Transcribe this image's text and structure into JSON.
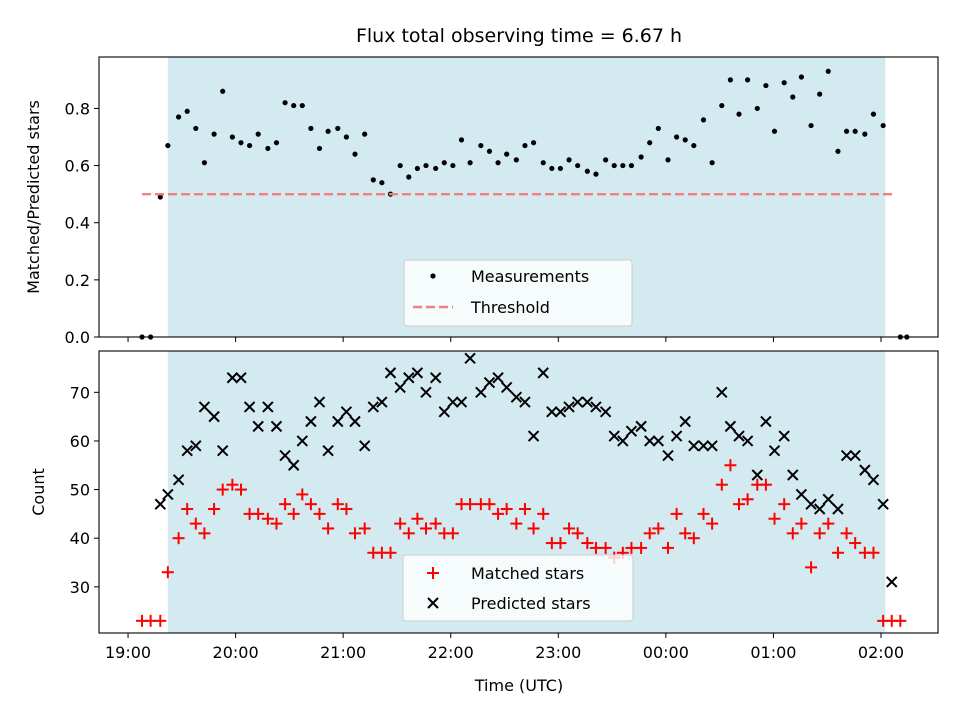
{
  "colors": {
    "shade": "#d3eaf0",
    "threshold": "#f08080",
    "measurement": "#000000",
    "matched": "#ff0000",
    "predicted": "#000000"
  },
  "chart_data": [
    {
      "type": "scatter",
      "title": "Flux total observing time = 6.67 h",
      "xlabel": "",
      "ylabel": "Matched/Predicted stars",
      "x_unit": "hours since 19:00 UTC",
      "xlim": [
        -0.27,
        7.53
      ],
      "ylim": [
        0.0,
        0.98
      ],
      "yticks": [
        0.0,
        0.2,
        0.4,
        0.6,
        0.8
      ],
      "ytick_labels": [
        "0.0",
        "0.2",
        "0.4",
        "0.6",
        "0.8"
      ],
      "shaded_span": [
        0.37,
        7.04
      ],
      "legend_position": "lower-center",
      "series": [
        {
          "name": "Measurements",
          "marker": "dot",
          "points": [
            [
              0.13,
              0.0
            ],
            [
              0.21,
              0.0
            ],
            [
              0.3,
              0.49
            ],
            [
              0.37,
              0.67
            ],
            [
              0.47,
              0.77
            ],
            [
              0.55,
              0.79
            ],
            [
              0.63,
              0.73
            ],
            [
              0.71,
              0.61
            ],
            [
              0.8,
              0.71
            ],
            [
              0.88,
              0.86
            ],
            [
              0.97,
              0.7
            ],
            [
              1.05,
              0.68
            ],
            [
              1.13,
              0.67
            ],
            [
              1.21,
              0.71
            ],
            [
              1.3,
              0.66
            ],
            [
              1.38,
              0.68
            ],
            [
              1.46,
              0.82
            ],
            [
              1.54,
              0.81
            ],
            [
              1.62,
              0.81
            ],
            [
              1.7,
              0.73
            ],
            [
              1.78,
              0.66
            ],
            [
              1.86,
              0.72
            ],
            [
              1.95,
              0.73
            ],
            [
              2.03,
              0.7
            ],
            [
              2.11,
              0.64
            ],
            [
              2.2,
              0.71
            ],
            [
              2.28,
              0.55
            ],
            [
              2.36,
              0.54
            ],
            [
              2.44,
              0.5
            ],
            [
              2.53,
              0.6
            ],
            [
              2.61,
              0.56
            ],
            [
              2.69,
              0.59
            ],
            [
              2.77,
              0.6
            ],
            [
              2.86,
              0.59
            ],
            [
              2.94,
              0.61
            ],
            [
              3.02,
              0.6
            ],
            [
              3.1,
              0.69
            ],
            [
              3.18,
              0.61
            ],
            [
              3.28,
              0.67
            ],
            [
              3.36,
              0.65
            ],
            [
              3.44,
              0.61
            ],
            [
              3.52,
              0.64
            ],
            [
              3.61,
              0.62
            ],
            [
              3.69,
              0.67
            ],
            [
              3.77,
              0.68
            ],
            [
              3.86,
              0.61
            ],
            [
              3.94,
              0.59
            ],
            [
              4.02,
              0.59
            ],
            [
              4.1,
              0.62
            ],
            [
              4.18,
              0.6
            ],
            [
              4.27,
              0.58
            ],
            [
              4.35,
              0.57
            ],
            [
              4.44,
              0.62
            ],
            [
              4.52,
              0.6
            ],
            [
              4.6,
              0.6
            ],
            [
              4.68,
              0.6
            ],
            [
              4.77,
              0.63
            ],
            [
              4.85,
              0.68
            ],
            [
              4.93,
              0.73
            ],
            [
              5.02,
              0.62
            ],
            [
              5.1,
              0.7
            ],
            [
              5.18,
              0.69
            ],
            [
              5.26,
              0.67
            ],
            [
              5.35,
              0.76
            ],
            [
              5.43,
              0.61
            ],
            [
              5.52,
              0.81
            ],
            [
              5.6,
              0.9
            ],
            [
              5.68,
              0.78
            ],
            [
              5.76,
              0.9
            ],
            [
              5.85,
              0.8
            ],
            [
              5.93,
              0.88
            ],
            [
              6.01,
              0.72
            ],
            [
              6.1,
              0.89
            ],
            [
              6.18,
              0.84
            ],
            [
              6.26,
              0.91
            ],
            [
              6.35,
              0.74
            ],
            [
              6.43,
              0.85
            ],
            [
              6.51,
              0.93
            ],
            [
              6.6,
              0.65
            ],
            [
              6.68,
              0.72
            ],
            [
              6.76,
              0.72
            ],
            [
              6.85,
              0.71
            ],
            [
              6.93,
              0.78
            ],
            [
              7.02,
              0.74
            ],
            [
              7.18,
              0.0
            ],
            [
              7.24,
              0.0
            ]
          ]
        },
        {
          "name": "Threshold",
          "marker": "dashed-line",
          "points": [
            [
              0.13,
              0.5
            ],
            [
              7.14,
              0.5
            ]
          ]
        }
      ],
      "legend": [
        {
          "label": "Measurements",
          "marker": "dot"
        },
        {
          "label": "Threshold",
          "marker": "dashed-line"
        }
      ]
    },
    {
      "type": "scatter",
      "title": "",
      "xlabel": "Time (UTC)",
      "ylabel": "Count",
      "x_unit": "hours since 19:00 UTC",
      "xlim": [
        -0.27,
        7.53
      ],
      "ylim": [
        20.5,
        78.5
      ],
      "xticks": [
        0,
        1,
        2,
        3,
        4,
        5,
        6,
        7
      ],
      "xtick_labels": [
        "19:00",
        "20:00",
        "21:00",
        "22:00",
        "23:00",
        "00:00",
        "01:00",
        "02:00"
      ],
      "yticks": [
        30,
        40,
        50,
        60,
        70
      ],
      "ytick_labels": [
        "30",
        "40",
        "50",
        "60",
        "70"
      ],
      "shaded_span": [
        0.37,
        7.04
      ],
      "legend_position": "lower-center",
      "series": [
        {
          "name": "Matched stars",
          "marker": "plus",
          "points": [
            [
              0.13,
              23
            ],
            [
              0.21,
              23
            ],
            [
              0.3,
              23
            ],
            [
              0.37,
              33
            ],
            [
              0.47,
              40
            ],
            [
              0.55,
              46
            ],
            [
              0.63,
              43
            ],
            [
              0.71,
              41
            ],
            [
              0.8,
              46
            ],
            [
              0.88,
              50
            ],
            [
              0.97,
              51
            ],
            [
              1.05,
              50
            ],
            [
              1.13,
              45
            ],
            [
              1.21,
              45
            ],
            [
              1.3,
              44
            ],
            [
              1.38,
              43
            ],
            [
              1.46,
              47
            ],
            [
              1.54,
              45
            ],
            [
              1.62,
              49
            ],
            [
              1.7,
              47
            ],
            [
              1.78,
              45
            ],
            [
              1.86,
              42
            ],
            [
              1.95,
              47
            ],
            [
              2.03,
              46
            ],
            [
              2.11,
              41
            ],
            [
              2.2,
              42
            ],
            [
              2.28,
              37
            ],
            [
              2.36,
              37
            ],
            [
              2.44,
              37
            ],
            [
              2.53,
              43
            ],
            [
              2.61,
              41
            ],
            [
              2.69,
              44
            ],
            [
              2.77,
              42
            ],
            [
              2.86,
              43
            ],
            [
              2.94,
              41
            ],
            [
              3.02,
              41
            ],
            [
              3.1,
              47
            ],
            [
              3.18,
              47
            ],
            [
              3.28,
              47
            ],
            [
              3.36,
              47
            ],
            [
              3.44,
              45
            ],
            [
              3.52,
              46
            ],
            [
              3.61,
              43
            ],
            [
              3.69,
              46
            ],
            [
              3.77,
              42
            ],
            [
              3.86,
              45
            ],
            [
              3.94,
              39
            ],
            [
              4.02,
              39
            ],
            [
              4.1,
              42
            ],
            [
              4.18,
              41
            ],
            [
              4.27,
              39
            ],
            [
              4.35,
              38
            ],
            [
              4.44,
              38
            ],
            [
              4.52,
              36
            ],
            [
              4.6,
              37
            ],
            [
              4.68,
              38
            ],
            [
              4.77,
              38
            ],
            [
              4.85,
              41
            ],
            [
              4.93,
              42
            ],
            [
              5.02,
              38
            ],
            [
              5.1,
              45
            ],
            [
              5.18,
              41
            ],
            [
              5.26,
              40
            ],
            [
              5.35,
              45
            ],
            [
              5.43,
              43
            ],
            [
              5.52,
              51
            ],
            [
              5.6,
              55
            ],
            [
              5.68,
              47
            ],
            [
              5.76,
              48
            ],
            [
              5.85,
              51
            ],
            [
              5.93,
              51
            ],
            [
              6.01,
              44
            ],
            [
              6.1,
              47
            ],
            [
              6.18,
              41
            ],
            [
              6.26,
              43
            ],
            [
              6.35,
              34
            ],
            [
              6.43,
              41
            ],
            [
              6.51,
              43
            ],
            [
              6.6,
              37
            ],
            [
              6.68,
              41
            ],
            [
              6.76,
              39
            ],
            [
              6.85,
              37
            ],
            [
              6.93,
              37
            ],
            [
              7.02,
              23
            ],
            [
              7.1,
              23
            ],
            [
              7.18,
              23
            ]
          ]
        },
        {
          "name": "Predicted stars",
          "marker": "x",
          "points": [
            [
              0.3,
              47
            ],
            [
              0.37,
              49
            ],
            [
              0.47,
              52
            ],
            [
              0.55,
              58
            ],
            [
              0.63,
              59
            ],
            [
              0.71,
              67
            ],
            [
              0.8,
              65
            ],
            [
              0.88,
              58
            ],
            [
              0.97,
              73
            ],
            [
              1.05,
              73
            ],
            [
              1.13,
              67
            ],
            [
              1.21,
              63
            ],
            [
              1.3,
              67
            ],
            [
              1.38,
              63
            ],
            [
              1.46,
              57
            ],
            [
              1.54,
              55
            ],
            [
              1.62,
              60
            ],
            [
              1.7,
              64
            ],
            [
              1.78,
              68
            ],
            [
              1.86,
              58
            ],
            [
              1.95,
              64
            ],
            [
              2.03,
              66
            ],
            [
              2.11,
              64
            ],
            [
              2.2,
              59
            ],
            [
              2.28,
              67
            ],
            [
              2.36,
              68
            ],
            [
              2.44,
              74
            ],
            [
              2.53,
              71
            ],
            [
              2.61,
              73
            ],
            [
              2.69,
              74
            ],
            [
              2.77,
              70
            ],
            [
              2.86,
              73
            ],
            [
              2.94,
              66
            ],
            [
              3.02,
              68
            ],
            [
              3.1,
              68
            ],
            [
              3.18,
              77
            ],
            [
              3.28,
              70
            ],
            [
              3.36,
              72
            ],
            [
              3.44,
              73
            ],
            [
              3.52,
              71
            ],
            [
              3.61,
              69
            ],
            [
              3.69,
              68
            ],
            [
              3.77,
              61
            ],
            [
              3.86,
              74
            ],
            [
              3.94,
              66
            ],
            [
              4.02,
              66
            ],
            [
              4.1,
              67
            ],
            [
              4.18,
              68
            ],
            [
              4.27,
              68
            ],
            [
              4.35,
              67
            ],
            [
              4.44,
              66
            ],
            [
              4.52,
              61
            ],
            [
              4.6,
              60
            ],
            [
              4.68,
              62
            ],
            [
              4.77,
              63
            ],
            [
              4.85,
              60
            ],
            [
              4.93,
              60
            ],
            [
              5.02,
              57
            ],
            [
              5.1,
              61
            ],
            [
              5.18,
              64
            ],
            [
              5.26,
              59
            ],
            [
              5.35,
              59
            ],
            [
              5.43,
              59
            ],
            [
              5.52,
              70
            ],
            [
              5.6,
              63
            ],
            [
              5.68,
              61
            ],
            [
              5.76,
              60
            ],
            [
              5.85,
              53
            ],
            [
              5.93,
              64
            ],
            [
              6.01,
              58
            ],
            [
              6.1,
              61
            ],
            [
              6.18,
              53
            ],
            [
              6.26,
              49
            ],
            [
              6.35,
              47
            ],
            [
              6.43,
              46
            ],
            [
              6.51,
              48
            ],
            [
              6.6,
              46
            ],
            [
              6.68,
              57
            ],
            [
              6.76,
              57
            ],
            [
              6.85,
              54
            ],
            [
              6.93,
              52
            ],
            [
              7.02,
              47
            ],
            [
              7.1,
              31
            ]
          ]
        }
      ],
      "legend": [
        {
          "label": "Matched stars",
          "marker": "plus"
        },
        {
          "label": "Predicted stars",
          "marker": "x"
        }
      ]
    }
  ]
}
